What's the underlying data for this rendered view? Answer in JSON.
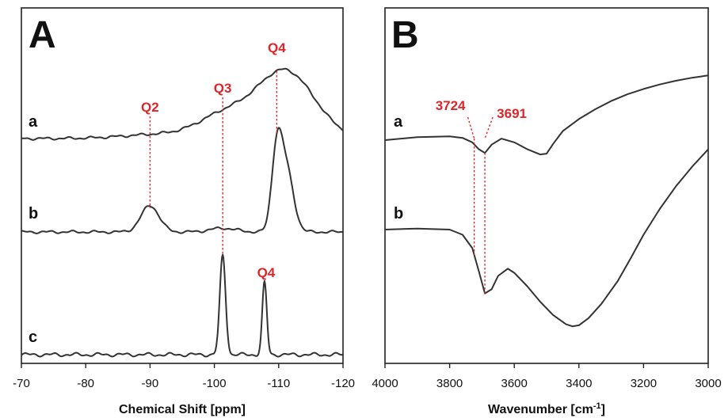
{
  "chart_data": [
    {
      "type": "line",
      "panel_label": "A",
      "xlabel": "Chemical Shift [ppm]",
      "ylabel": "",
      "xlim": [
        -70,
        -120
      ],
      "x_ticks": [
        -70,
        -80,
        -90,
        -100,
        -110,
        -120
      ],
      "grid": false,
      "series": [
        {
          "label": "a",
          "peaks": [
            {
              "x": -111,
              "h": 0.95,
              "w": 4.5
            },
            {
              "x": -101.5,
              "h": 0.3,
              "w": 4
            },
            {
              "x": -92,
              "h": 0.06,
              "w": 6
            }
          ]
        },
        {
          "label": "b",
          "peaks": [
            {
              "x": -90,
              "h": 0.35,
              "w": 1.4
            },
            {
              "x": -101.3,
              "h": 0.05,
              "w": 2
            },
            {
              "x": -109.7,
              "h": 1.0,
              "w": 0.8
            },
            {
              "x": -111.2,
              "h": 0.82,
              "w": 1.1
            }
          ]
        },
        {
          "label": "c",
          "peaks": [
            {
              "x": -101.3,
              "h": 1.0,
              "w": 0.45
            },
            {
              "x": -107.8,
              "h": 0.73,
              "w": 0.35
            }
          ]
        }
      ],
      "annotations": [
        {
          "text": "Q2",
          "x": -90
        },
        {
          "text": "Q3",
          "x": -101.3
        },
        {
          "text": "Q4",
          "x": -109.7
        },
        {
          "text": "Q4",
          "x": -107.8
        }
      ]
    },
    {
      "type": "line",
      "panel_label": "B",
      "xlabel": "Wavenumber [cm",
      "xlabel_sup": "-1",
      "xlabel_end": "]",
      "ylabel": "",
      "xlim": [
        4000,
        3000
      ],
      "x_ticks": [
        4000,
        3800,
        3600,
        3400,
        3200,
        3000
      ],
      "grid": false,
      "series": [
        {
          "label": "a",
          "x": [
            4000,
            3900,
            3800,
            3760,
            3730,
            3710,
            3691,
            3670,
            3640,
            3600,
            3560,
            3520,
            3500,
            3480,
            3450,
            3400,
            3350,
            3300,
            3250,
            3200,
            3150,
            3100,
            3050,
            3000
          ],
          "y": [
            0.0,
            0.04,
            0.05,
            0.03,
            -0.03,
            -0.12,
            -0.17,
            -0.06,
            0.02,
            -0.03,
            -0.12,
            -0.19,
            -0.18,
            -0.05,
            0.12,
            0.28,
            0.41,
            0.52,
            0.61,
            0.68,
            0.74,
            0.79,
            0.83,
            0.86
          ]
        },
        {
          "label": "b",
          "x": [
            4000,
            3900,
            3800,
            3760,
            3730,
            3710,
            3691,
            3670,
            3650,
            3620,
            3600,
            3560,
            3520,
            3480,
            3440,
            3420,
            3400,
            3370,
            3330,
            3280,
            3240,
            3200,
            3150,
            3100,
            3050,
            3000
          ],
          "y": [
            0.0,
            0.01,
            0.0,
            -0.05,
            -0.18,
            -0.4,
            -0.62,
            -0.58,
            -0.45,
            -0.38,
            -0.42,
            -0.55,
            -0.7,
            -0.83,
            -0.92,
            -0.94,
            -0.93,
            -0.86,
            -0.72,
            -0.5,
            -0.28,
            -0.05,
            0.2,
            0.42,
            0.61,
            0.78
          ]
        }
      ],
      "annotations": [
        {
          "text": "3724",
          "x": 3724
        },
        {
          "text": "3691",
          "x": 3691
        }
      ]
    }
  ]
}
